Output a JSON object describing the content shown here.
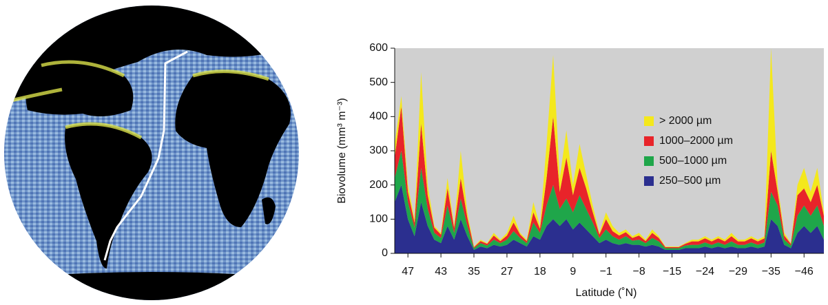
{
  "chart_data": {
    "type": "stacked_area",
    "xlabel": "Latitude (˚N)",
    "ylabel": "Biovolume (mm³ m⁻³)",
    "categories": [
      null,
      null,
      "47",
      null,
      null,
      null,
      null,
      "43",
      null,
      null,
      null,
      null,
      "35",
      null,
      null,
      null,
      null,
      "27",
      null,
      null,
      null,
      null,
      "18",
      null,
      null,
      null,
      null,
      "9",
      null,
      null,
      null,
      null,
      "−1",
      null,
      null,
      null,
      null,
      "−8",
      null,
      null,
      null,
      null,
      "−15",
      null,
      null,
      null,
      null,
      "−24",
      null,
      null,
      null,
      null,
      "−29",
      null,
      null,
      null,
      null,
      "−35",
      null,
      null,
      null,
      null,
      "−46",
      null,
      null,
      null
    ],
    "ylim": [
      0,
      600
    ],
    "yticks": [
      0,
      100,
      200,
      300,
      400,
      500,
      600
    ],
    "legend": "upper-right",
    "series": [
      {
        "name": "250–500 µm",
        "color": "#2b2f8f",
        "values": [
          150,
          200,
          100,
          50,
          150,
          80,
          40,
          30,
          80,
          40,
          100,
          50,
          10,
          20,
          15,
          25,
          20,
          25,
          40,
          30,
          20,
          50,
          40,
          80,
          100,
          80,
          100,
          70,
          90,
          70,
          50,
          30,
          40,
          30,
          25,
          30,
          25,
          25,
          20,
          25,
          20,
          10,
          10,
          10,
          15,
          15,
          15,
          20,
          15,
          20,
          15,
          20,
          15,
          15,
          20,
          15,
          20,
          100,
          80,
          25,
          15,
          60,
          80,
          60,
          80,
          40
        ]
      },
      {
        "name": "500–1000 µm",
        "color": "#1fa64a",
        "values": [
          70,
          100,
          50,
          25,
          100,
          50,
          20,
          15,
          60,
          20,
          60,
          30,
          5,
          10,
          8,
          15,
          10,
          15,
          25,
          15,
          10,
          40,
          20,
          60,
          100,
          50,
          60,
          50,
          80,
          60,
          40,
          15,
          30,
          20,
          15,
          20,
          12,
          15,
          10,
          20,
          15,
          5,
          5,
          5,
          8,
          10,
          10,
          12,
          10,
          12,
          10,
          15,
          10,
          10,
          12,
          10,
          12,
          80,
          60,
          15,
          8,
          50,
          60,
          50,
          60,
          40
        ]
      },
      {
        "name": "1000–2000 µm",
        "color": "#e8242a",
        "values": [
          60,
          130,
          30,
          15,
          130,
          40,
          15,
          10,
          50,
          15,
          60,
          25,
          3,
          6,
          5,
          12,
          6,
          12,
          25,
          10,
          6,
          30,
          12,
          80,
          200,
          50,
          120,
          50,
          80,
          60,
          30,
          10,
          30,
          15,
          12,
          12,
          8,
          12,
          6,
          15,
          10,
          3,
          3,
          3,
          5,
          10,
          10,
          12,
          10,
          12,
          10,
          15,
          10,
          10,
          12,
          10,
          12,
          120,
          40,
          12,
          5,
          60,
          50,
          40,
          60,
          30
        ]
      },
      {
        "name": "> 2000 µm",
        "color": "#f4e81c",
        "values": [
          40,
          30,
          20,
          10,
          150,
          30,
          5,
          5,
          30,
          5,
          80,
          15,
          2,
          4,
          2,
          8,
          4,
          8,
          20,
          5,
          4,
          30,
          8,
          100,
          180,
          40,
          80,
          30,
          70,
          40,
          20,
          5,
          20,
          15,
          8,
          8,
          5,
          8,
          4,
          10,
          5,
          2,
          2,
          2,
          2,
          5,
          5,
          6,
          5,
          6,
          5,
          10,
          5,
          5,
          6,
          5,
          6,
          300,
          20,
          8,
          2,
          30,
          60,
          30,
          50,
          10
        ]
      }
    ]
  }
}
